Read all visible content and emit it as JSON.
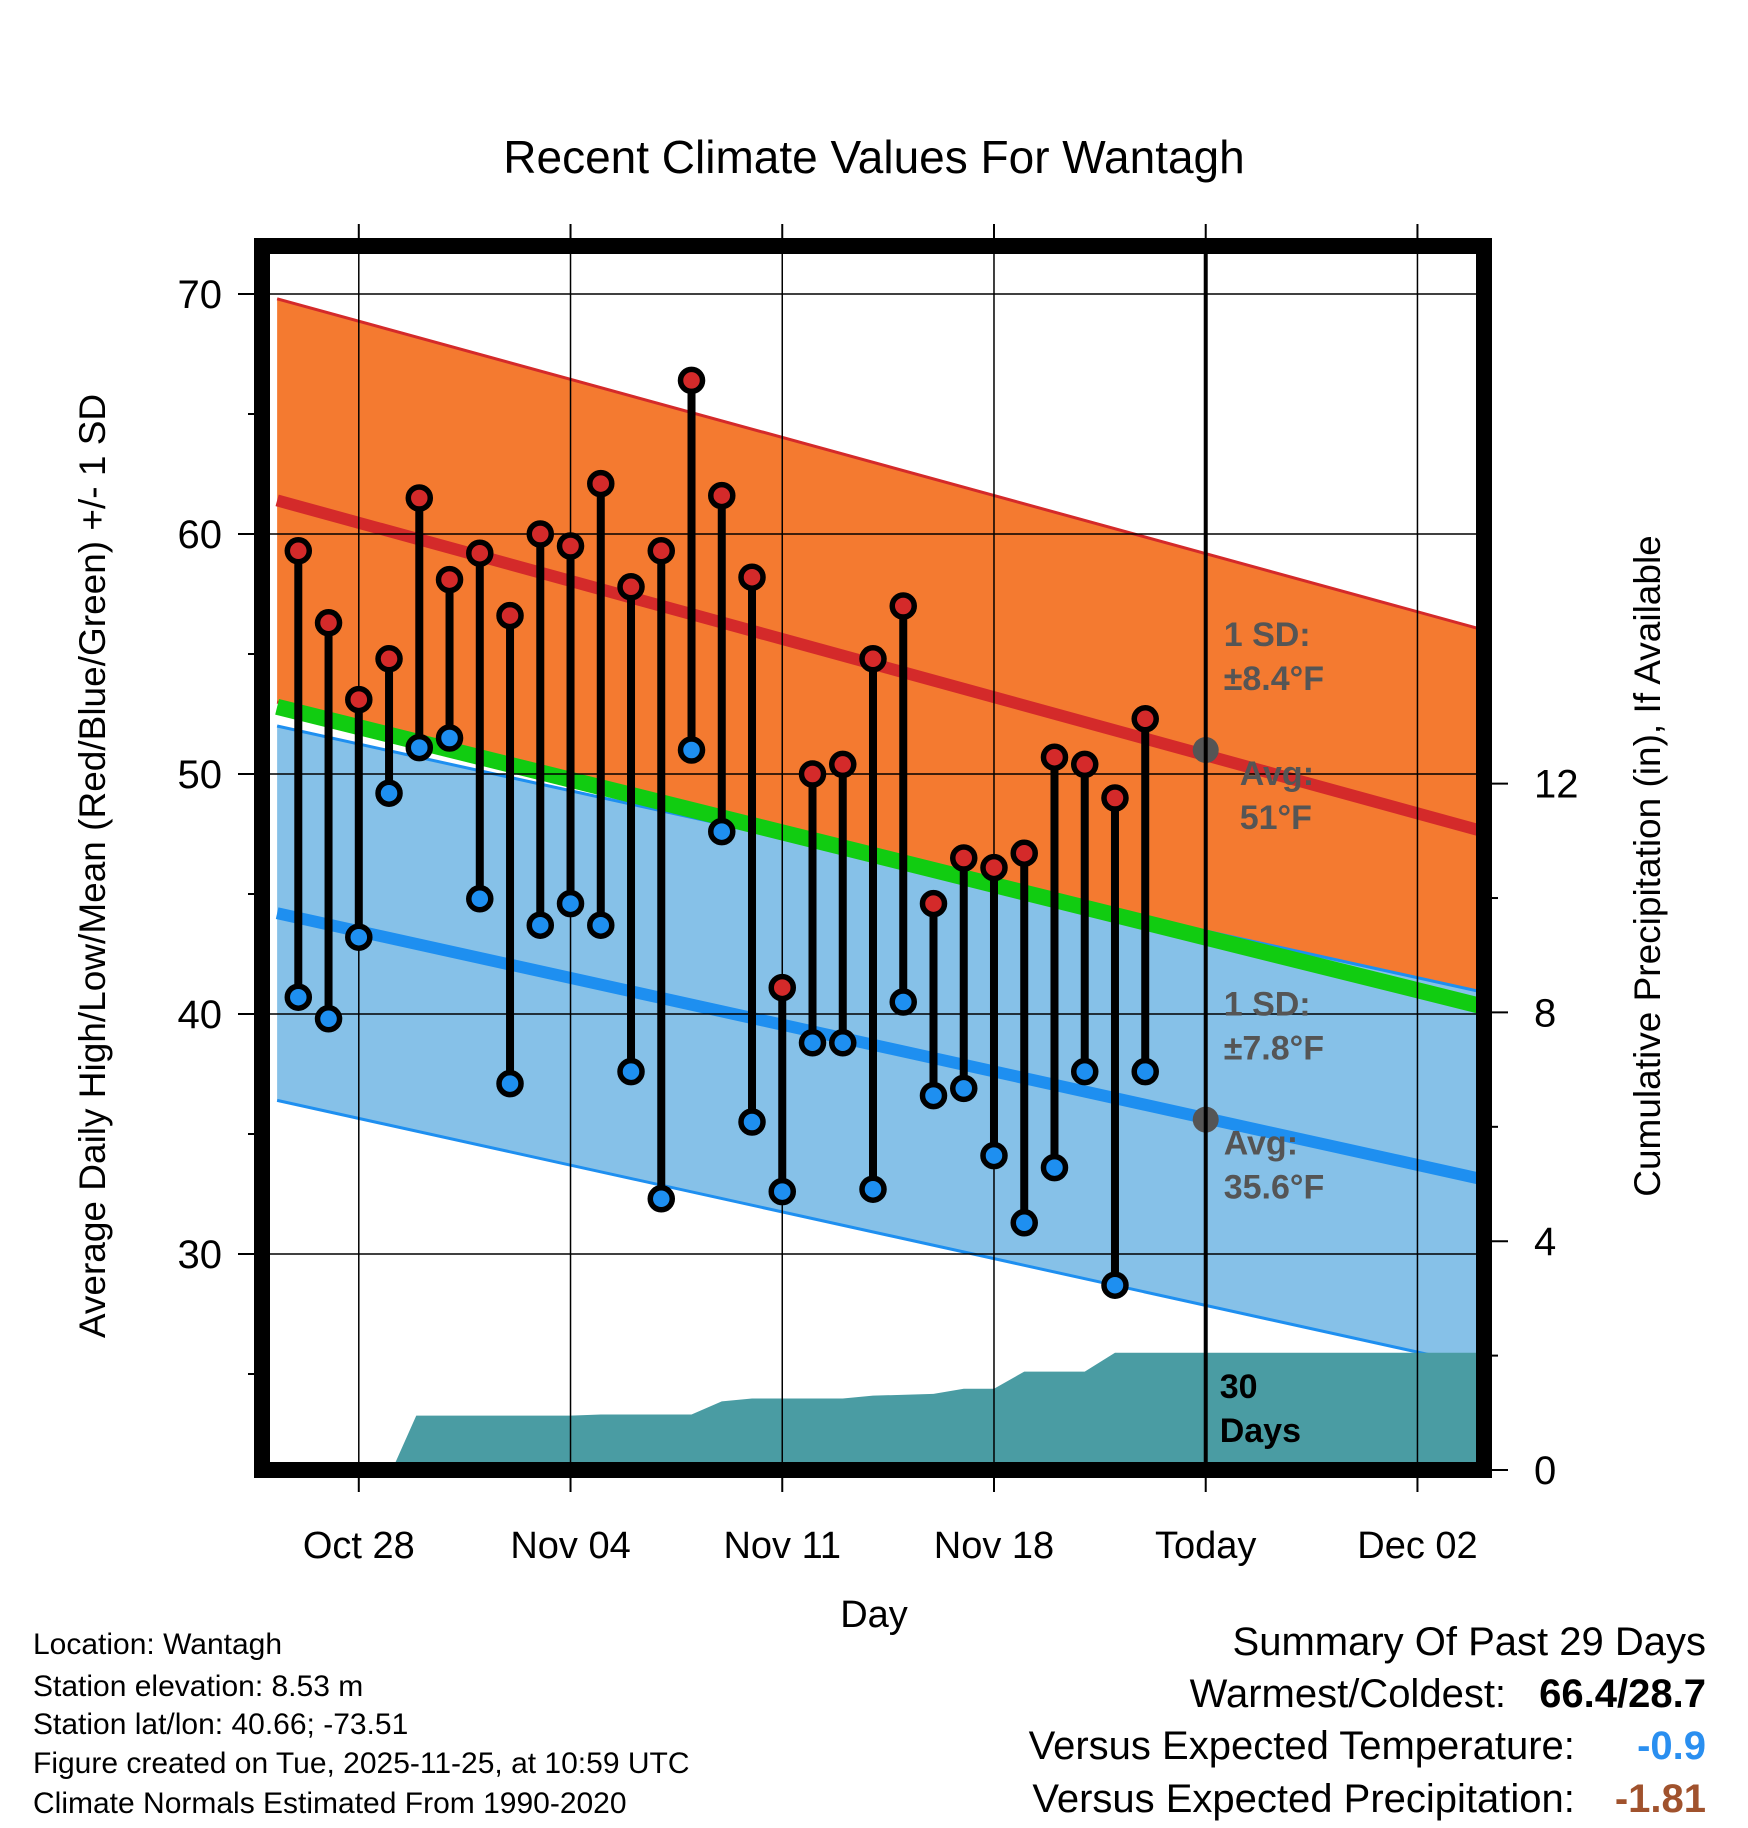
{
  "chart_data": {
    "type": "line",
    "title": "Recent Climate Values For Wantagh",
    "xlabel": "Day",
    "ylabel": "Average Daily High/Low/Mean (Red/Blue/Green) +/- 1 SD",
    "y2label": "Cumulative Precipitation (in), If Available",
    "ylim": [
      21,
      72
    ],
    "yticks": [
      30,
      40,
      50,
      60,
      70
    ],
    "y2lim": [
      0,
      21.4
    ],
    "y2ticks": [
      0,
      4,
      8,
      12
    ],
    "xlim": [
      -3.2,
      37.2
    ],
    "x_ticks": [
      {
        "day": 0,
        "label": "Oct 28"
      },
      {
        "day": 7,
        "label": "Nov 04"
      },
      {
        "day": 14,
        "label": "Nov 11"
      },
      {
        "day": 21,
        "label": "Nov 18"
      },
      {
        "day": 28,
        "label": "Today"
      },
      {
        "day": 35,
        "label": "Dec 02"
      }
    ],
    "today_day": 28,
    "normals": {
      "high": {
        "start": 61.4,
        "end": 47.6
      },
      "low": {
        "start": 44.2,
        "end": 33.1
      },
      "mean": {
        "start": 52.8,
        "end": 40.3
      },
      "high_sd": 8.4,
      "low_sd": 7.8,
      "start_day": -2.7,
      "end_day": 37.2
    },
    "daily_high": [
      59.3,
      56.3,
      53.1,
      54.8,
      61.5,
      58.1,
      59.2,
      56.6,
      60.0,
      59.5,
      62.1,
      57.8,
      59.3,
      66.4,
      61.6,
      58.2,
      41.1,
      50.0,
      50.4,
      54.8,
      57.0,
      44.6,
      46.5,
      46.1,
      46.7,
      50.7,
      50.4,
      49.0,
      52.3
    ],
    "daily_low": [
      40.7,
      39.8,
      43.2,
      49.2,
      51.1,
      51.5,
      44.8,
      37.1,
      43.7,
      44.6,
      43.7,
      37.6,
      32.3,
      51.0,
      47.6,
      35.5,
      32.6,
      38.8,
      38.8,
      32.7,
      40.5,
      36.6,
      36.9,
      34.1,
      31.3,
      33.6,
      37.6,
      28.7,
      37.6
    ],
    "first_day": -2,
    "precip_cumulative": [
      {
        "day": -3.2,
        "value": 0
      },
      {
        "day": 1.1,
        "value": 0
      },
      {
        "day": 1.9,
        "value": 0.95
      },
      {
        "day": 4,
        "value": 0.95
      },
      {
        "day": 7,
        "value": 0.95
      },
      {
        "day": 8,
        "value": 0.97
      },
      {
        "day": 11,
        "value": 0.97
      },
      {
        "day": 12,
        "value": 1.2
      },
      {
        "day": 13,
        "value": 1.25
      },
      {
        "day": 16,
        "value": 1.25
      },
      {
        "day": 17,
        "value": 1.3
      },
      {
        "day": 19,
        "value": 1.33
      },
      {
        "day": 20,
        "value": 1.42
      },
      {
        "day": 21,
        "value": 1.42
      },
      {
        "day": 22,
        "value": 1.72
      },
      {
        "day": 24,
        "value": 1.72
      },
      {
        "day": 25,
        "value": 2.05
      },
      {
        "day": 37.2,
        "value": 2.05
      }
    ],
    "annotations": {
      "high_sd_label": "1 SD:",
      "high_sd_value": "±8.4°F",
      "high_avg_label": "Avg:",
      "high_avg_value": "51°F",
      "low_sd_label": "1 SD:",
      "low_sd_value": "±7.8°F",
      "low_avg_label": "Avg:",
      "low_avg_value": "35.6°F",
      "days_number": "30",
      "days_label": "Days"
    },
    "high_avg_today": 51,
    "low_avg_today": 35.6
  },
  "colors": {
    "high_band": "#f47a30",
    "high_line": "#d42a2a",
    "low_band": "#86c1e8",
    "low_line": "#1e8ff0",
    "mean_line": "#11cc11",
    "precip": "#4a9ca3",
    "annotation": "#555555",
    "high_dot": "#d42a2a",
    "low_dot": "#1e8ff0",
    "temp_departure": "#2a8ff0",
    "precip_departure": "#a0522d"
  },
  "info": {
    "location": "Location: Wantagh",
    "elevation": "Station elevation: 8.53 m",
    "latlon": "Station lat/lon: 40.66; -73.51",
    "created": "Figure created on Tue, 2025-11-25, at 10:59 UTC",
    "normals": "Climate Normals Estimated From 1990-2020"
  },
  "summary": {
    "title": "Summary Of Past 29 Days",
    "warm_cold_label": "Warmest/Coldest:",
    "warm_cold_value": "66.4/28.7",
    "temp_label": "Versus Expected Temperature:",
    "temp_value": "-0.9",
    "precip_label": "Versus Expected Precipitation:",
    "precip_value": "-1.81"
  }
}
